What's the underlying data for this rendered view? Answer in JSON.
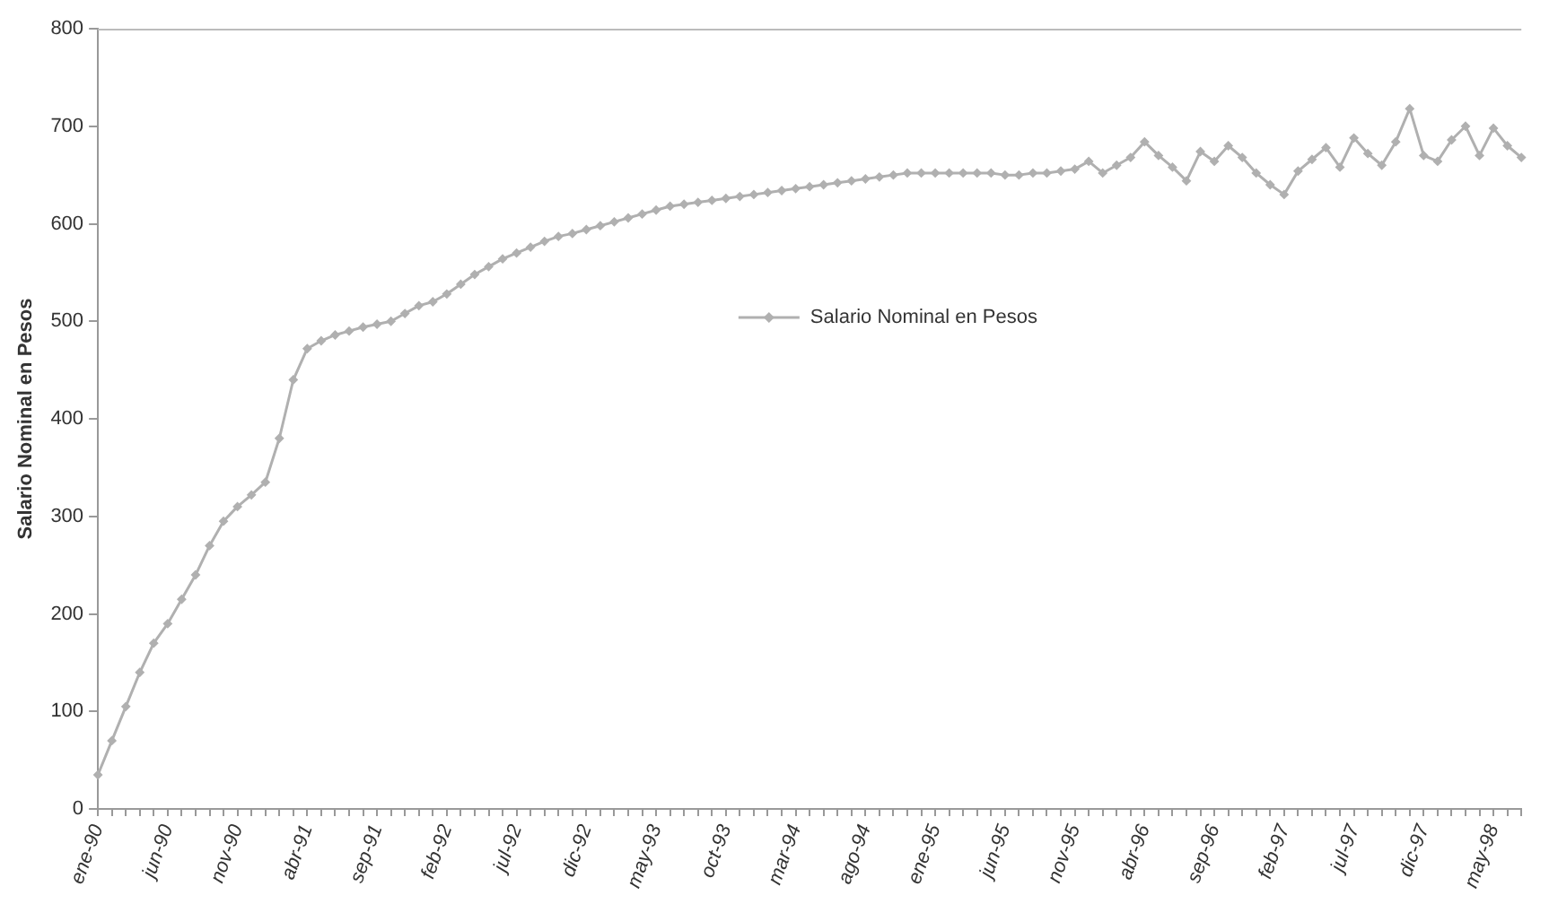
{
  "chart_data": {
    "type": "line",
    "ylabel": "Salario Nominal en Pesos",
    "categories": [
      "ene-90",
      null,
      null,
      null,
      null,
      "jun-90",
      null,
      null,
      null,
      null,
      "nov-90",
      null,
      null,
      null,
      null,
      "abr-91",
      null,
      null,
      null,
      null,
      "sep-91",
      null,
      null,
      null,
      null,
      "feb-92",
      null,
      null,
      null,
      null,
      "jul-92",
      null,
      null,
      null,
      null,
      "dic-92",
      null,
      null,
      null,
      null,
      "may-93",
      null,
      null,
      null,
      null,
      "oct-93",
      null,
      null,
      null,
      null,
      "mar-94",
      null,
      null,
      null,
      null,
      "ago-94",
      null,
      null,
      null,
      null,
      "ene-95",
      null,
      null,
      null,
      null,
      "jun-95",
      null,
      null,
      null,
      null,
      "nov-95",
      null,
      null,
      null,
      null,
      "abr-96",
      null,
      null,
      null,
      null,
      "sep-96",
      null,
      null,
      null,
      null,
      "feb-97",
      null,
      null,
      null,
      null,
      "jul-97",
      null,
      null,
      null,
      null,
      "dic-97",
      null,
      null,
      null,
      null,
      "may-98",
      null,
      null
    ],
    "series": [
      {
        "name": "Salario Nominal en Pesos",
        "color": "#b0b0b0",
        "values": [
          35,
          70,
          105,
          140,
          170,
          190,
          215,
          240,
          270,
          295,
          310,
          322,
          335,
          380,
          440,
          472,
          480,
          486,
          490,
          494,
          497,
          500,
          508,
          516,
          520,
          528,
          538,
          548,
          556,
          564,
          570,
          576,
          582,
          587,
          590,
          594,
          598,
          602,
          606,
          610,
          614,
          618,
          620,
          622,
          624,
          626,
          628,
          630,
          632,
          634,
          636,
          638,
          640,
          642,
          644,
          646,
          648,
          650,
          652,
          652,
          652,
          652,
          652,
          652,
          652,
          650,
          650,
          652,
          652,
          654,
          656,
          664,
          652,
          660,
          668,
          684,
          670,
          658,
          644,
          674,
          664,
          680,
          668,
          652,
          640,
          630,
          654,
          666,
          678,
          658,
          688,
          672,
          660,
          684,
          718,
          670,
          664,
          686,
          700,
          670,
          698,
          680,
          668
        ]
      }
    ],
    "ylim": [
      0,
      800
    ],
    "yticks": [
      0,
      100,
      200,
      300,
      400,
      500,
      600,
      700,
      800
    ],
    "grid": false,
    "legend": "center right",
    "marker": "diamond",
    "line_style": "solid"
  }
}
